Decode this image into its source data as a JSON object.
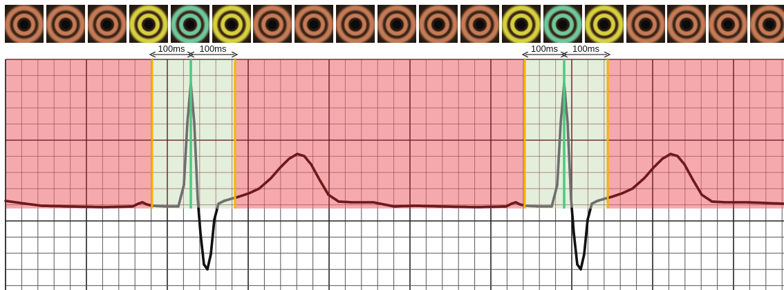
{
  "frames": [
    {
      "tone": "copper"
    },
    {
      "tone": "copper"
    },
    {
      "tone": "copper"
    },
    {
      "tone": "yellow"
    },
    {
      "tone": "green"
    },
    {
      "tone": "yellow"
    },
    {
      "tone": "copper"
    },
    {
      "tone": "copper"
    },
    {
      "tone": "copper"
    },
    {
      "tone": "copper"
    },
    {
      "tone": "copper"
    },
    {
      "tone": "copper"
    },
    {
      "tone": "yellow"
    },
    {
      "tone": "green"
    },
    {
      "tone": "yellow"
    },
    {
      "tone": "copper"
    },
    {
      "tone": "copper"
    },
    {
      "tone": "copper"
    },
    {
      "tone": "copper"
    }
  ],
  "windows": [
    {
      "label_before": "100ms",
      "label_after": "100ms"
    },
    {
      "label_before": "100ms",
      "label_after": "100ms"
    }
  ],
  "colors": {
    "red_zone": "#f6a9ac",
    "green_window": "#e3eedb",
    "window_edge": "#f4b400",
    "r_peak_marker": "#4cc97f",
    "trace_in_red": "#6e1a1c",
    "trace_in_green": "#6f6f6f",
    "trace_in_white": "#111111",
    "tone_copper": "#c47a55",
    "tone_yellow": "#d4cf4a",
    "tone_green": "#6fc79a"
  }
}
